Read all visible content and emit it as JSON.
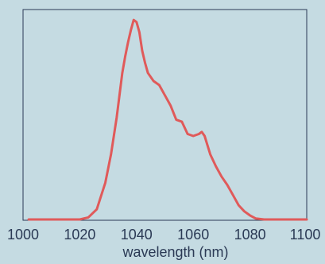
{
  "chart_data": {
    "type": "line",
    "title": "",
    "xlabel": "wavelength (nm)",
    "ylabel": "",
    "xlim": [
      1000,
      1100
    ],
    "ylim": [
      0,
      1.0
    ],
    "grid": false,
    "legend": "none",
    "xticks": [
      1000,
      1020,
      1040,
      1060,
      1080,
      1100
    ],
    "xtick_labels": [
      "1000",
      "1020",
      "1040",
      "1060",
      "1080",
      "1100"
    ],
    "series": [
      {
        "color": "#e05a5a",
        "points": [
          [
            1002,
            0.0
          ],
          [
            1010,
            0.0
          ],
          [
            1020,
            0.0
          ],
          [
            1023,
            0.01
          ],
          [
            1026,
            0.05
          ],
          [
            1029,
            0.18
          ],
          [
            1031,
            0.32
          ],
          [
            1033,
            0.5
          ],
          [
            1035,
            0.72
          ],
          [
            1036,
            0.8
          ],
          [
            1037,
            0.87
          ],
          [
            1038,
            0.93
          ],
          [
            1039,
            0.98
          ],
          [
            1040,
            0.97
          ],
          [
            1041,
            0.92
          ],
          [
            1042,
            0.83
          ],
          [
            1043,
            0.77
          ],
          [
            1044,
            0.72
          ],
          [
            1046,
            0.68
          ],
          [
            1048,
            0.66
          ],
          [
            1050,
            0.61
          ],
          [
            1052,
            0.56
          ],
          [
            1054,
            0.49
          ],
          [
            1056,
            0.48
          ],
          [
            1058,
            0.42
          ],
          [
            1060,
            0.41
          ],
          [
            1062,
            0.42
          ],
          [
            1063,
            0.43
          ],
          [
            1064,
            0.41
          ],
          [
            1066,
            0.32
          ],
          [
            1068,
            0.26
          ],
          [
            1070,
            0.21
          ],
          [
            1072,
            0.17
          ],
          [
            1074,
            0.12
          ],
          [
            1076,
            0.07
          ],
          [
            1078,
            0.04
          ],
          [
            1080,
            0.02
          ],
          [
            1082,
            0.005
          ],
          [
            1085,
            0.0
          ],
          [
            1090,
            0.0
          ],
          [
            1100,
            0.0
          ]
        ]
      }
    ]
  }
}
